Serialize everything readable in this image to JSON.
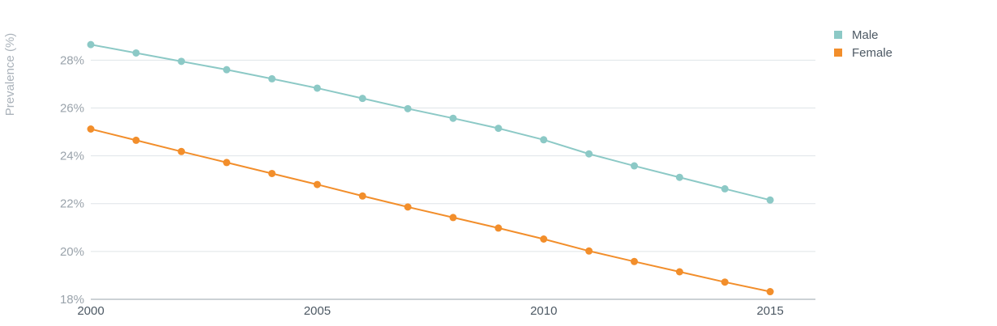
{
  "chart_data": {
    "type": "line",
    "title": "",
    "xlabel": "",
    "ylabel": "Prevalence (%)",
    "x": [
      2000,
      2001,
      2002,
      2003,
      2004,
      2005,
      2006,
      2007,
      2008,
      2009,
      2010,
      2011,
      2012,
      2013,
      2014,
      2015
    ],
    "xlim": [
      2000,
      2016
    ],
    "ylim": [
      18,
      29.5
    ],
    "x_ticks": [
      2000,
      2005,
      2010,
      2015
    ],
    "x_tick_labels": [
      "2000",
      "2005",
      "2010",
      "2015"
    ],
    "y_ticks": [
      18,
      20,
      22,
      24,
      26,
      28
    ],
    "y_tick_labels": [
      "18%",
      "20%",
      "22%",
      "24%",
      "26%",
      "28%"
    ],
    "grid": "horizontal",
    "legend_position": "top-right",
    "series": [
      {
        "name": "Male",
        "color": "#8cc9c6",
        "values": [
          28.65,
          28.3,
          27.95,
          27.6,
          27.22,
          26.83,
          26.4,
          25.97,
          25.57,
          25.15,
          24.67,
          24.08,
          23.58,
          23.1,
          22.62,
          22.15
        ]
      },
      {
        "name": "Female",
        "color": "#f28e2b",
        "values": [
          25.12,
          24.65,
          24.18,
          23.72,
          23.26,
          22.8,
          22.32,
          21.86,
          21.42,
          20.98,
          20.52,
          20.02,
          19.58,
          19.15,
          18.72,
          18.32
        ]
      }
    ]
  }
}
